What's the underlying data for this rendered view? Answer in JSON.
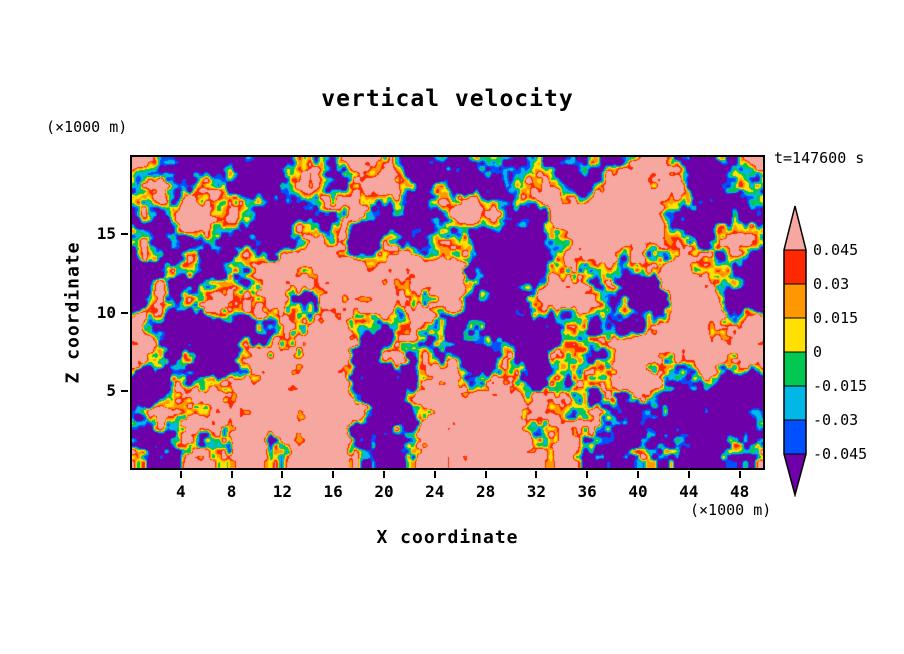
{
  "title": "vertical velocity",
  "time_label": "t=147600 s",
  "x_axis": {
    "label": "X coordinate",
    "unit": "(×1000 m)",
    "ticks": [
      "4",
      "8",
      "12",
      "16",
      "20",
      "24",
      "28",
      "32",
      "36",
      "40",
      "44",
      "48"
    ],
    "range": [
      0,
      50
    ]
  },
  "z_axis": {
    "label": "Z coordinate",
    "unit": "(×1000 m)",
    "ticks": [
      "5",
      "10",
      "15"
    ],
    "range": [
      0,
      20
    ]
  },
  "chart_data": {
    "type": "heatmap",
    "title": "vertical velocity",
    "xlabel": "X coordinate",
    "ylabel": "Z coordinate",
    "axis_unit": "(×1000 m)",
    "time_annotation": "t=147600 s",
    "x_tick_labels": [
      "4",
      "8",
      "12",
      "16",
      "20",
      "24",
      "28",
      "32",
      "36",
      "40",
      "44",
      "48"
    ],
    "z_tick_labels": [
      "5",
      "10",
      "15"
    ],
    "xlim": [
      0,
      50
    ],
    "zlim": [
      0,
      20
    ],
    "contour_levels": [
      -0.045,
      -0.03,
      -0.015,
      0,
      0.015,
      0.03,
      0.045
    ],
    "colorbar_labels_top_to_bottom": [
      "0.045",
      "0.03",
      "0.015",
      "0",
      "-0.015",
      "-0.03",
      "-0.045"
    ],
    "band_colors_low_to_high": [
      "#6e00aa",
      "#0050ff",
      "#00b8e6",
      "#00c850",
      "#ffe000",
      "#ff9800",
      "#ff2800",
      "#f6a8a0"
    ],
    "colorbar_arrow_top_color": "#f6a8a0",
    "colorbar_arrow_bottom_color": "#6e00aa"
  }
}
